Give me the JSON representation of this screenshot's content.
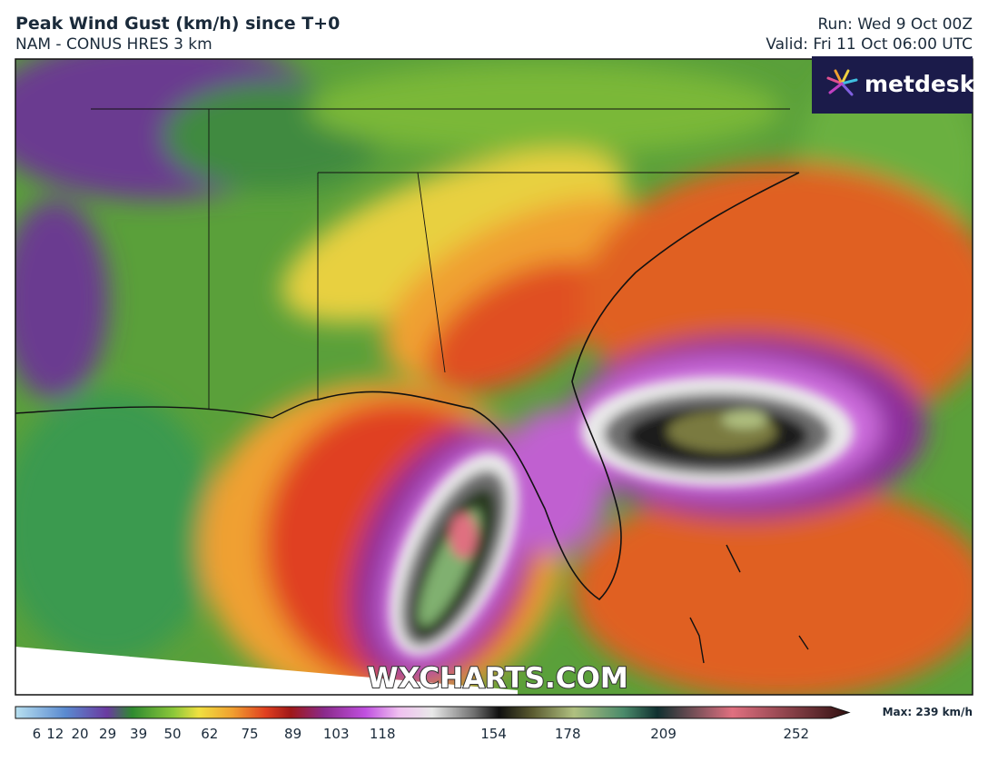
{
  "header": {
    "title": "Peak Wind Gust (km/h) since T+0",
    "subtitle": "NAM - CONUS HRES 3 km",
    "run": "Run: Wed 9 Oct 00Z",
    "valid": "Valid: Fri 11 Oct 06:00 UTC"
  },
  "logo": "metdesk",
  "watermark": "WXCHARTS.COM",
  "colorbar": {
    "ticks": [
      6,
      12,
      20,
      29,
      39,
      50,
      62,
      75,
      89,
      103,
      118,
      154,
      178,
      209,
      252
    ],
    "max_label": "Max: 239 km/h"
  }
}
